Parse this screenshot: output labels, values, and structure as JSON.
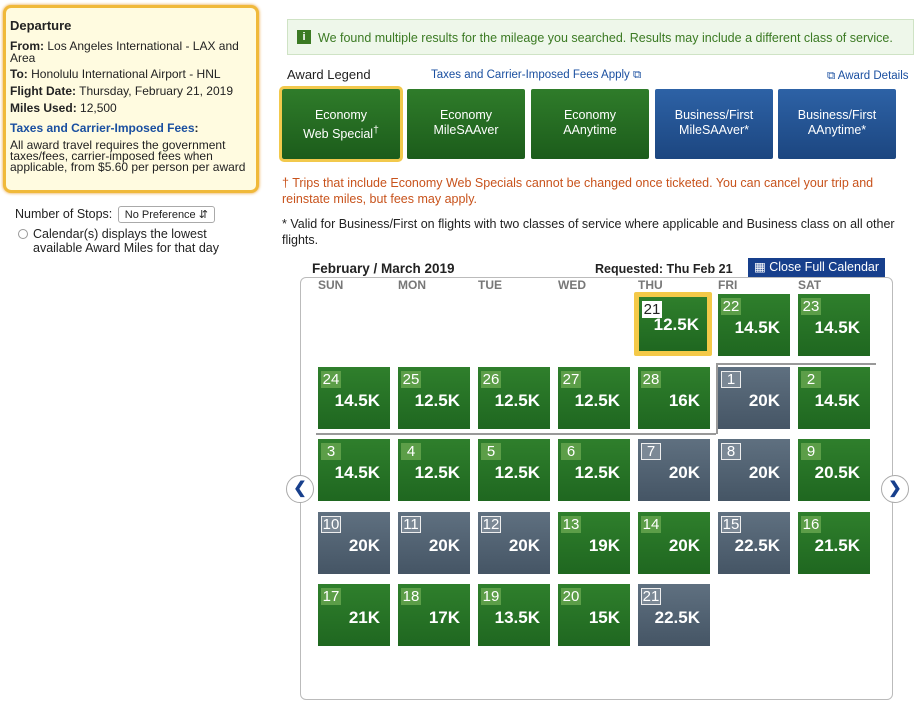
{
  "departure": {
    "title": "Departure",
    "from_label": "From:",
    "from": "Los Angeles International - LAX and Area",
    "to_label": "To:",
    "to": "Honolulu International Airport - HNL",
    "date_label": "Flight Date:",
    "date": "Thursday, February 21, 2019",
    "miles_label": "Miles Used:",
    "miles": "12,500",
    "fees_link": "Taxes and Carrier-Imposed Fees",
    "fees_colon": ":",
    "fees_note": "All award travel requires the government taxes/fees, carrier-imposed fees when applicable, from $5.60 per person per award"
  },
  "filters": {
    "stops_label": "Number of Stops:",
    "stops_value": "No Preference",
    "calendar_note": "Calendar(s) displays the lowest available Award Miles for that day"
  },
  "notice": "We found multiple results for the mileage you searched. Results may include a different class of service.",
  "legend": {
    "title": "Award Legend",
    "fees_link": "Taxes and Carrier-Imposed Fees Apply",
    "details_link": "Award Details",
    "items": [
      {
        "line1": "Economy",
        "line2": "Web Special",
        "mark": "†",
        "style": "economy"
      },
      {
        "line1": "Economy",
        "line2": "MileSAAver",
        "style": "economy"
      },
      {
        "line1": "Economy",
        "line2": "AAnytime",
        "style": "economy"
      },
      {
        "line1": "Business/First",
        "line2": "MileSAAver*",
        "style": "business"
      },
      {
        "line1": "Business/First",
        "line2": "AAnytime*",
        "style": "business"
      }
    ]
  },
  "notes": [
    "† Trips that include Economy Web Specials cannot be changed once ticketed. You can cancel your trip and reinstate miles, but fees may apply.",
    "* Valid for Business/First on flights with two classes of service where applicable and Business class on all other flights."
  ],
  "calendar": {
    "title": "February / March 2019",
    "requested": "Requested: Thu Feb 21",
    "close": "Close Full Calendar",
    "weekdays": [
      "SUN",
      "MON",
      "TUE",
      "WED",
      "THU",
      "FRI",
      "SAT"
    ],
    "days": [
      {
        "day": "21",
        "miles": "12.5K",
        "style": "economy",
        "selected": true
      },
      {
        "day": "22",
        "miles": "14.5K",
        "style": "economy"
      },
      {
        "day": "23",
        "miles": "14.5K",
        "style": "economy"
      },
      {
        "day": "24",
        "miles": "14.5K",
        "style": "economy"
      },
      {
        "day": "25",
        "miles": "12.5K",
        "style": "economy"
      },
      {
        "day": "26",
        "miles": "12.5K",
        "style": "economy"
      },
      {
        "day": "27",
        "miles": "12.5K",
        "style": "economy"
      },
      {
        "day": "28",
        "miles": "16K",
        "style": "economy"
      },
      {
        "day": "1",
        "miles": "20K",
        "style": "business"
      },
      {
        "day": "2",
        "miles": "14.5K",
        "style": "economy"
      },
      {
        "day": "3",
        "miles": "14.5K",
        "style": "economy"
      },
      {
        "day": "4",
        "miles": "12.5K",
        "style": "economy"
      },
      {
        "day": "5",
        "miles": "12.5K",
        "style": "economy"
      },
      {
        "day": "6",
        "miles": "12.5K",
        "style": "economy"
      },
      {
        "day": "7",
        "miles": "20K",
        "style": "business"
      },
      {
        "day": "8",
        "miles": "20K",
        "style": "business"
      },
      {
        "day": "9",
        "miles": "20.5K",
        "style": "economy"
      },
      {
        "day": "10",
        "miles": "20K",
        "style": "business"
      },
      {
        "day": "11",
        "miles": "20K",
        "style": "business"
      },
      {
        "day": "12",
        "miles": "20K",
        "style": "business"
      },
      {
        "day": "13",
        "miles": "19K",
        "style": "economy"
      },
      {
        "day": "14",
        "miles": "20K",
        "style": "economy"
      },
      {
        "day": "15",
        "miles": "22.5K",
        "style": "business"
      },
      {
        "day": "16",
        "miles": "21.5K",
        "style": "economy"
      },
      {
        "day": "17",
        "miles": "21K",
        "style": "economy"
      },
      {
        "day": "18",
        "miles": "17K",
        "style": "economy"
      },
      {
        "day": "19",
        "miles": "13.5K",
        "style": "economy"
      },
      {
        "day": "20",
        "miles": "15K",
        "style": "economy"
      },
      {
        "day": "21",
        "miles": "22.5K",
        "style": "business"
      }
    ]
  }
}
